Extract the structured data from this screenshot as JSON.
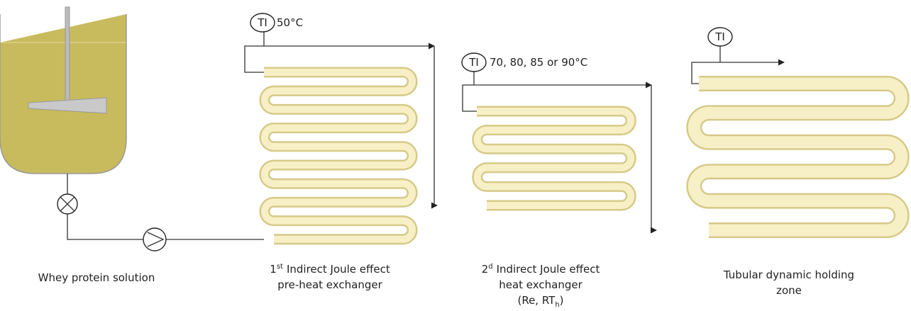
{
  "tank": {
    "label": "Whey protein solution"
  },
  "instruments": [
    {
      "tag": "TI",
      "reading": "50°C"
    },
    {
      "tag": "TI",
      "reading": "70, 80, 85 or 90°C"
    },
    {
      "tag": "TI"
    }
  ],
  "exchangers": [
    {
      "number": "1",
      "ordinal": "st",
      "title": "Indirect Joule effect",
      "subtitle": "pre-heat exchanger"
    },
    {
      "number": "2",
      "ordinal": "d",
      "title": "Indirect Joule effect",
      "subtitle": "heat exchanger",
      "note_prefix": "(Re, RT",
      "note_subscript": "h",
      "note_suffix": ")"
    }
  ],
  "holding_zone": {
    "label_line1": "Tubular dynamic holding",
    "label_line2": "zone"
  }
}
